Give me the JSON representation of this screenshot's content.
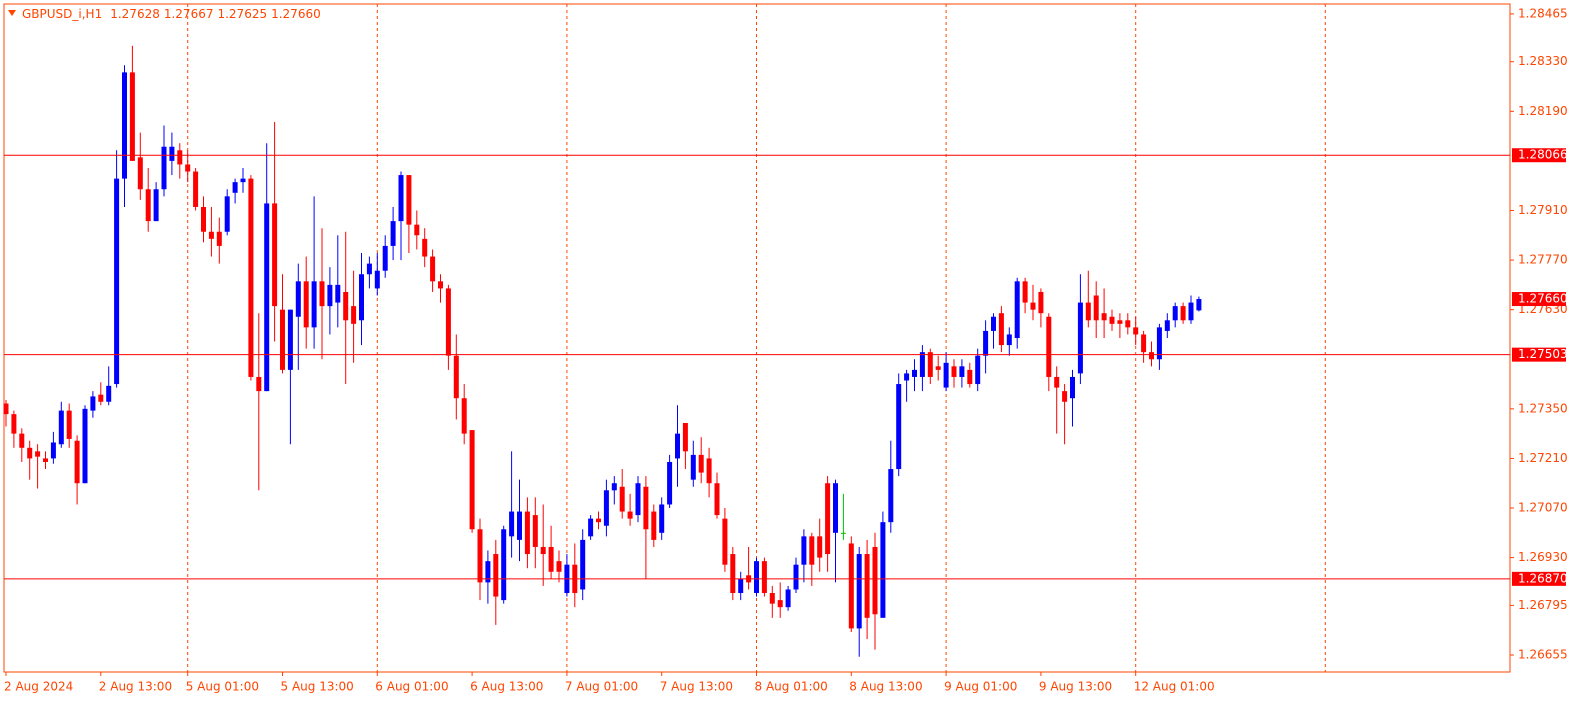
{
  "chart_data": {
    "type": "candlestick",
    "header": {
      "symbol": "GBPUSD_i,H1",
      "values": [
        "1.27628",
        "1.27667",
        "1.27625",
        "1.27660"
      ]
    },
    "up_color": "#0000ff",
    "down_color": "#ff0000",
    "doji_color": "#00c000",
    "ylim": [
      1.26607,
      1.28493
    ],
    "yticks": [
      1.28465,
      {
        "value": 1.2833,
        "label": "1.28330"
      },
      {
        "value": 1.2819,
        "label": "1.28190"
      },
      {
        "value": 1.2791,
        "label": "1.27910"
      },
      {
        "value": 1.2777,
        "label": "1.27770"
      },
      {
        "value": 1.2763,
        "label": "1.27630"
      },
      {
        "value": 1.2735,
        "label": "1.27350"
      },
      {
        "value": 1.2721,
        "label": "1.27210"
      },
      {
        "value": 1.2707,
        "label": "1.27070"
      },
      {
        "value": 1.2693,
        "label": "1.26930"
      },
      1.26795,
      1.26655
    ],
    "hlines": [
      1.28066,
      1.27503,
      {
        "value": 1.2687,
        "label": "1.26870"
      }
    ],
    "price_label": {
      "value": 1.2766,
      "label": "1.27660"
    },
    "grid": false,
    "categories": [
      "2 Aug 2024",
      null,
      null,
      null,
      null,
      null,
      null,
      null,
      null,
      null,
      null,
      null,
      "2 Aug 13:00",
      null,
      null,
      null,
      null,
      null,
      null,
      null,
      null,
      null,
      null,
      "5 Aug 01:00",
      null,
      null,
      null,
      null,
      null,
      null,
      null,
      null,
      null,
      null,
      null,
      "5 Aug 13:00",
      null,
      null,
      null,
      null,
      null,
      null,
      null,
      null,
      null,
      null,
      null,
      "6 Aug 01:00",
      null,
      null,
      null,
      null,
      null,
      null,
      null,
      null,
      null,
      null,
      null,
      "6 Aug 13:00",
      null,
      null,
      null,
      null,
      null,
      null,
      null,
      null,
      null,
      null,
      null,
      "7 Aug 01:00",
      null,
      null,
      null,
      null,
      null,
      null,
      null,
      null,
      null,
      null,
      null,
      "7 Aug 13:00",
      null,
      null,
      null,
      null,
      null,
      null,
      null,
      null,
      null,
      null,
      null,
      "8 Aug 01:00",
      null,
      null,
      null,
      null,
      null,
      null,
      null,
      null,
      null,
      null,
      null,
      "8 Aug 13:00",
      null,
      null,
      null,
      null,
      null,
      null,
      null,
      null,
      null,
      null,
      null,
      "9 Aug 01:00",
      null,
      null,
      null,
      null,
      null,
      null,
      null,
      null,
      null,
      null,
      null,
      "9 Aug 13:00",
      null,
      null,
      null,
      null,
      null,
      null,
      null,
      null,
      null,
      null,
      null,
      "12 Aug 01:00",
      null,
      null,
      null,
      null,
      null,
      null,
      null,
      null
    ],
    "open": [
      1.27365,
      1.27335,
      1.2728,
      1.2724,
      1.2723,
      1.2721,
      1.2721,
      1.2725,
      1.27345,
      1.2726,
      1.2714,
      1.27345,
      1.2739,
      1.2737,
      1.2742,
      1.28,
      1.283,
      1.2806,
      1.2797,
      1.2788,
      1.2797,
      1.2805,
      1.2808,
      1.2804,
      1.2802,
      1.2792,
      1.2785,
      1.2785,
      1.2785,
      1.2796,
      1.2799,
      1.28,
      1.2744,
      1.274,
      1.2793,
      1.2763,
      1.2746,
      1.2761,
      1.2771,
      1.2758,
      1.2771,
      1.2764,
      1.2765,
      1.2768,
      1.2764,
      1.276,
      1.2773,
      1.2769,
      1.2774,
      1.2781,
      1.2788,
      1.2801,
      1.2787,
      1.2783,
      1.2778,
      1.2771,
      1.2769,
      1.275,
      1.2738,
      1.2729,
      1.2701,
      1.2686,
      1.2694,
      1.2681,
      1.2699,
      1.2698,
      1.2706,
      1.2705,
      1.2696,
      1.2696,
      1.2692,
      1.2683,
      1.2691,
      1.2684,
      1.2699,
      1.2704,
      1.2702,
      1.2712,
      1.2713,
      1.2706,
      1.2705,
      1.2713,
      1.2706,
      1.27,
      1.2708,
      1.2721,
      1.2731,
      1.2715,
      1.2722,
      1.2721,
      1.2714,
      1.2704,
      1.2694,
      1.2683,
      1.2688,
      1.2683,
      1.2692,
      1.2683,
      1.2681,
      1.2679,
      1.2684,
      1.2691,
      1.2699,
      1.2699,
      1.2714,
      1.27,
      1.27,
      1.2697,
      1.2673,
      1.2694,
      1.2696,
      1.2676,
      1.2703,
      1.2718,
      1.2743,
      1.2744,
      1.2744,
      1.2751,
      1.2747,
      1.2741,
      1.2747,
      1.2744,
      1.2746,
      1.2742,
      1.275,
      1.2757,
      1.2762,
      1.2753,
      1.2755,
      1.2771,
      1.2765,
      1.2768,
      1.2761,
      1.2744,
      1.274,
      1.2738,
      1.2745,
      1.2765,
      1.2767,
      1.2762,
      1.2761,
      1.276,
      1.276,
      1.2758,
      1.2756,
      1.2751,
      1.2749,
      1.2757,
      1.276,
      1.2764,
      1.276,
      1.27628
    ],
    "high": [
      1.27375,
      1.27345,
      1.27295,
      1.2726,
      1.2725,
      1.2723,
      1.27285,
      1.2737,
      1.27365,
      1.27275,
      1.2736,
      1.274,
      1.27425,
      1.2747,
      1.2808,
      1.2832,
      1.28375,
      1.2813,
      1.2803,
      1.2799,
      1.2815,
      1.2813,
      1.281,
      1.2808,
      1.2803,
      1.2795,
      1.2792,
      1.2789,
      1.2797,
      1.28,
      1.2803,
      1.2801,
      1.2762,
      1.281,
      1.2816,
      1.2773,
      1.2763,
      1.2776,
      1.2778,
      1.2795,
      1.2786,
      1.2775,
      1.2784,
      1.2785,
      1.2774,
      1.2779,
      1.2778,
      1.2779,
      1.2784,
      1.2792,
      1.2802,
      1.2801,
      1.2791,
      1.2786,
      1.278,
      1.2773,
      1.277,
      1.2756,
      1.2742,
      1.2729,
      1.2704,
      1.2695,
      1.2698,
      1.2702,
      1.2723,
      1.2715,
      1.271,
      1.271,
      1.2708,
      1.2702,
      1.2695,
      1.2694,
      1.2697,
      1.2701,
      1.2705,
      1.2706,
      1.2715,
      1.2716,
      1.2718,
      1.2711,
      1.2716,
      1.2716,
      1.2708,
      1.271,
      1.2722,
      1.2736,
      1.2731,
      1.2726,
      1.2727,
      1.2724,
      1.2717,
      1.2707,
      1.2696,
      1.2689,
      1.2696,
      1.2693,
      1.2693,
      1.2685,
      1.2686,
      1.2685,
      1.2693,
      1.2701,
      1.27,
      1.2704,
      1.2716,
      1.2715,
      1.2711,
      1.2699,
      1.2696,
      1.2698,
      1.27,
      1.2706,
      1.2726,
      1.2745,
      1.2746,
      1.2749,
      1.2753,
      1.2752,
      1.275,
      1.2751,
      1.2749,
      1.2749,
      1.2748,
      1.2752,
      1.276,
      1.2762,
      1.2764,
      1.2758,
      1.2772,
      1.2772,
      1.277,
      1.2769,
      1.2762,
      1.2747,
      1.2742,
      1.2746,
      1.2773,
      1.2774,
      1.2771,
      1.2769,
      1.2763,
      1.2762,
      1.2762,
      1.2761,
      1.2757,
      1.2754,
      1.2759,
      1.2762,
      1.2765,
      1.2765,
      1.2767,
      1.27667
    ],
    "low": [
      1.273,
      1.2724,
      1.272,
      1.2715,
      1.27125,
      1.2718,
      1.27195,
      1.2724,
      1.2724,
      1.2708,
      1.2714,
      1.27325,
      1.2736,
      1.2736,
      1.2741,
      1.2792,
      1.2805,
      1.2794,
      1.2785,
      1.2788,
      1.2795,
      1.2801,
      1.28,
      1.2799,
      1.2791,
      1.2782,
      1.2778,
      1.2776,
      1.2784,
      1.2793,
      1.2796,
      1.2743,
      1.2712,
      1.274,
      1.2754,
      1.2745,
      1.2725,
      1.2746,
      1.2752,
      1.2752,
      1.2749,
      1.2756,
      1.2758,
      1.2742,
      1.2748,
      1.2753,
      1.2769,
      1.2767,
      1.2772,
      1.2777,
      1.2777,
      1.2779,
      1.278,
      1.2775,
      1.2768,
      1.2765,
      1.2746,
      1.2732,
      1.2725,
      1.27,
      1.2681,
      1.268,
      1.2674,
      1.268,
      1.2693,
      1.2692,
      1.269,
      1.269,
      1.2685,
      1.2687,
      1.2686,
      1.2682,
      1.2679,
      1.2681,
      1.2698,
      1.2701,
      1.2699,
      1.2708,
      1.2704,
      1.2702,
      1.2703,
      1.2687,
      1.2696,
      1.2698,
      1.2707,
      1.2713,
      1.2718,
      1.2713,
      1.2714,
      1.271,
      1.2704,
      1.2689,
      1.2681,
      1.2681,
      1.2684,
      1.2682,
      1.2682,
      1.2676,
      1.2676,
      1.2678,
      1.2683,
      1.2686,
      1.2685,
      1.2689,
      1.2689,
      1.2686,
      1.2698,
      1.2672,
      1.2665,
      1.267,
      1.2667,
      1.2676,
      1.27,
      1.2716,
      1.2737,
      1.274,
      1.274,
      1.2742,
      1.2743,
      1.274,
      1.2741,
      1.2741,
      1.2741,
      1.274,
      1.2745,
      1.2752,
      1.2751,
      1.275,
      1.2752,
      1.2762,
      1.276,
      1.2758,
      1.274,
      1.2728,
      1.2725,
      1.273,
      1.2742,
      1.2758,
      1.2755,
      1.2755,
      1.2757,
      1.2755,
      1.2756,
      1.2753,
      1.2748,
      1.2747,
      1.2746,
      1.2755,
      1.2758,
      1.2759,
      1.2759,
      1.27625
    ],
    "close": [
      1.27335,
      1.2728,
      1.2724,
      1.2721,
      1.27215,
      1.272,
      1.27255,
      1.27345,
      1.27265,
      1.2714,
      1.2735,
      1.27385,
      1.2737,
      1.27415,
      1.28,
      1.283,
      1.2805,
      1.2797,
      1.2788,
      1.2797,
      1.2809,
      1.2809,
      1.2804,
      1.2802,
      1.2792,
      1.2785,
      1.2783,
      1.2781,
      1.2795,
      1.2799,
      1.28,
      1.2744,
      1.274,
      1.2793,
      1.2764,
      1.2746,
      1.2763,
      1.2771,
      1.2758,
      1.2771,
      1.2764,
      1.277,
      1.277,
      1.276,
      1.2759,
      1.2773,
      1.2776,
      1.2774,
      1.2781,
      1.2788,
      1.2801,
      1.2787,
      1.2784,
      1.2778,
      1.2771,
      1.2769,
      1.275,
      1.2738,
      1.2728,
      1.2701,
      1.2686,
      1.2692,
      1.2682,
      1.2701,
      1.2706,
      1.2706,
      1.2694,
      1.2696,
      1.2694,
      1.2689,
      1.2689,
      1.2691,
      1.2683,
      1.2698,
      1.2704,
      1.2703,
      1.2712,
      1.2714,
      1.2706,
      1.2704,
      1.2714,
      1.2701,
      1.2698,
      1.2708,
      1.272,
      1.2728,
      1.2723,
      1.2722,
      1.2717,
      1.2714,
      1.2705,
      1.2691,
      1.2683,
      1.2687,
      1.2686,
      1.2692,
      1.2683,
      1.268,
      1.2679,
      1.2684,
      1.2691,
      1.2699,
      1.2691,
      1.2693,
      1.2694,
      1.2714,
      1.27,
      1.2673,
      1.2694,
      1.2676,
      1.2677,
      1.2703,
      1.2718,
      1.2742,
      1.2745,
      1.2746,
      1.2751,
      1.2744,
      1.2746,
      1.2748,
      1.2744,
      1.2747,
      1.2742,
      1.275,
      1.2757,
      1.2761,
      1.2753,
      1.2756,
      1.2771,
      1.2765,
      1.2763,
      1.2762,
      1.2744,
      1.2741,
      1.2737,
      1.2744,
      1.2765,
      1.276,
      1.276,
      1.276,
      1.2759,
      1.2759,
      1.2758,
      1.2756,
      1.2751,
      1.2749,
      1.2758,
      1.276,
      1.2764,
      1.276,
      1.2765,
      1.2766
    ]
  }
}
